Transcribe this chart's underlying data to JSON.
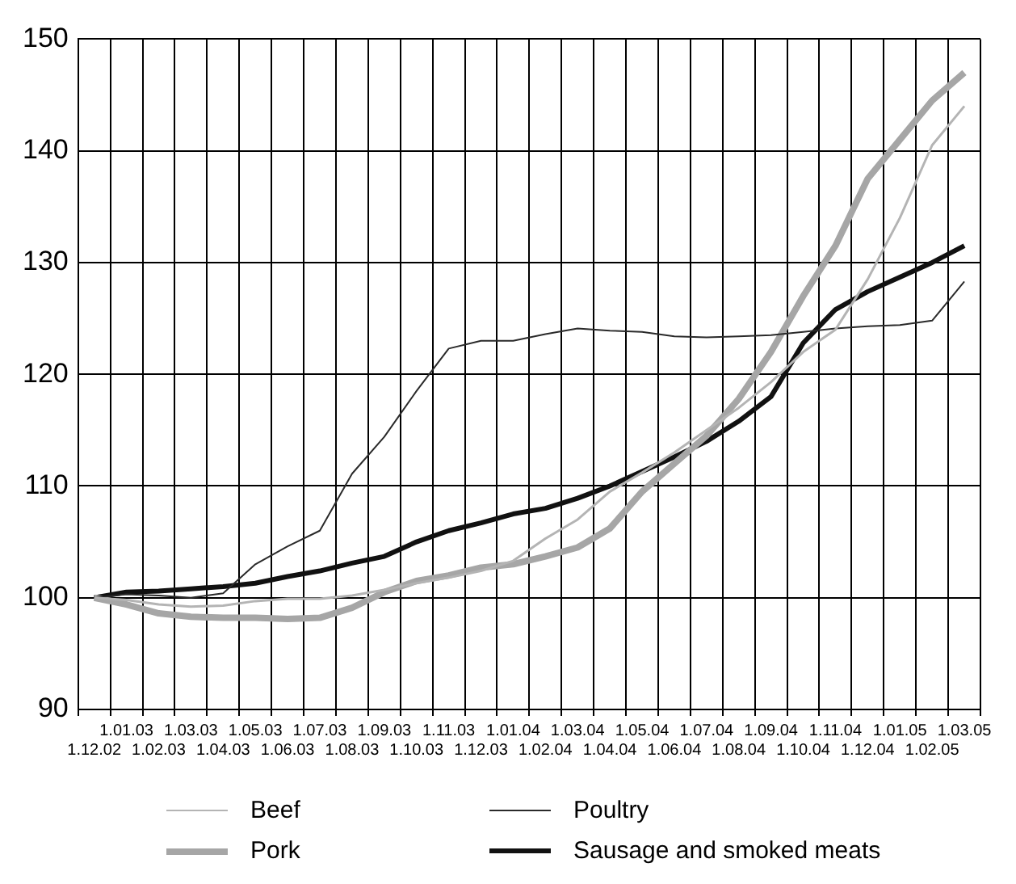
{
  "chart_data": {
    "type": "line",
    "categories": [
      "1.12.02",
      "1.01.03",
      "1.02.03",
      "1.03.03",
      "1.04.03",
      "1.05.03",
      "1.06.03",
      "1.07.03",
      "1.08.03",
      "1.09.03",
      "1.10.03",
      "1.11.03",
      "1.12.03",
      "1.01.04",
      "1.02.04",
      "1.03.04",
      "1.04.04",
      "1.05.04",
      "1.06.04",
      "1.07.04",
      "1.08.04",
      "1.09.04",
      "1.10.04",
      "1.11.04",
      "1.12.04",
      "1.01.05",
      "1.02.05",
      "1.03.05"
    ],
    "series": [
      {
        "name": "Beef",
        "color": "#b4b4b4",
        "values": [
          100,
          99.8,
          99.4,
          99.2,
          99.3,
          99.7,
          99.9,
          99.9,
          100.2,
          100.7,
          101.3,
          101.8,
          102.4,
          103.3,
          105.3,
          107,
          109.5,
          111.2,
          113,
          115,
          117,
          119.3,
          122,
          124,
          128.5,
          134,
          140.5,
          144
        ]
      },
      {
        "name": "Poultry",
        "color": "#2a2a2a",
        "values": [
          100,
          100.3,
          100.2,
          100,
          100.4,
          103,
          104.6,
          106,
          111.1,
          114.4,
          118.5,
          122.3,
          123,
          123,
          123.6,
          124.1,
          123.9,
          123.8,
          123.4,
          123.3,
          123.4,
          123.5,
          123.8,
          124.1,
          124.3,
          124.4,
          124.8,
          128.3
        ]
      },
      {
        "name": "Pork",
        "color": "#a6a6a6",
        "values": [
          100,
          99.4,
          98.6,
          98.3,
          98.2,
          98.2,
          98.1,
          98.2,
          99.1,
          100.5,
          101.5,
          102,
          102.7,
          103,
          103.7,
          104.5,
          106.2,
          109.5,
          112,
          114.5,
          117.8,
          122,
          127,
          131.5,
          137.5,
          141,
          144.5,
          147
        ]
      },
      {
        "name": "Sausage and smoked meats",
        "color": "#111111",
        "values": [
          100,
          100.5,
          100.6,
          100.8,
          101,
          101.3,
          101.9,
          102.4,
          103.1,
          103.7,
          105,
          106,
          106.7,
          107.5,
          108,
          108.9,
          110,
          111.3,
          112.6,
          114,
          115.8,
          118,
          122.8,
          125.8,
          127.4,
          128.7,
          130,
          131.5
        ]
      }
    ],
    "ylim": [
      90,
      150
    ],
    "yticks": [
      90,
      100,
      110,
      120,
      130,
      140,
      150
    ],
    "grid": true,
    "legend": "bottom",
    "marker": "none"
  }
}
